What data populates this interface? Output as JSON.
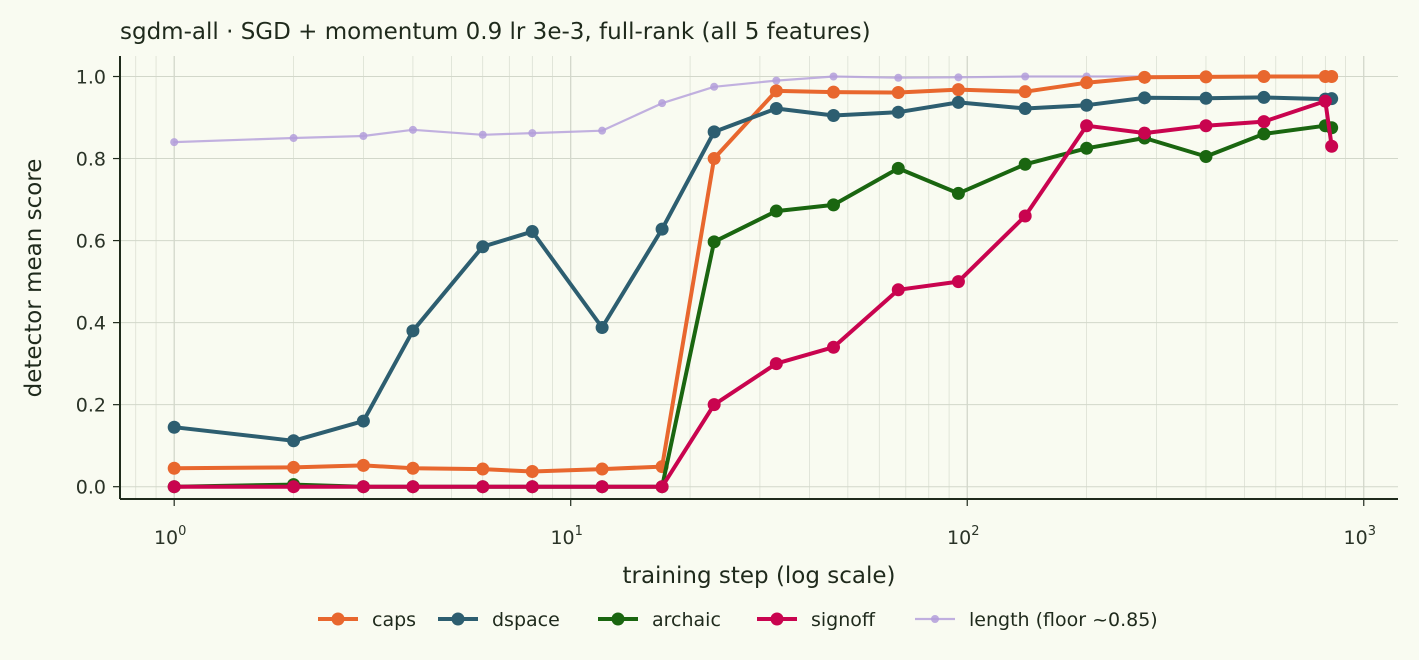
{
  "chart_data": {
    "type": "line",
    "title": "sgdm-all · SGD + momentum 0.9 lr 3e-3, full-rank (all 5 features)",
    "xlabel": "training step (log scale)",
    "ylabel": "detector mean score",
    "xscale": "log",
    "xlim": [
      0.73,
      1220
    ],
    "ylim": [
      -0.03,
      1.05
    ],
    "x_ticks": [
      {
        "value": 1,
        "base": "10",
        "exp": "0"
      },
      {
        "value": 10,
        "base": "10",
        "exp": "1"
      },
      {
        "value": 100,
        "base": "10",
        "exp": "2"
      },
      {
        "value": 1000,
        "base": "10",
        "exp": "3"
      }
    ],
    "y_ticks": [
      {
        "value": 0.0,
        "label": "0.0"
      },
      {
        "value": 0.2,
        "label": "0.2"
      },
      {
        "value": 0.4,
        "label": "0.4"
      },
      {
        "value": 0.6,
        "label": "0.6"
      },
      {
        "value": 0.8,
        "label": "0.8"
      },
      {
        "value": 1.0,
        "label": "1.0"
      }
    ],
    "grid": true,
    "legend_position": "bottom",
    "series": [
      {
        "name": "length (floor ~0.85)",
        "color": "#b39ddb",
        "style": "thin",
        "x": [
          1,
          2,
          3,
          4,
          6,
          8,
          12,
          17,
          23,
          33,
          46,
          67,
          95,
          140,
          200,
          280,
          400,
          560,
          800,
          830
        ],
        "y": [
          0.84,
          0.85,
          0.855,
          0.87,
          0.858,
          0.862,
          0.868,
          0.935,
          0.975,
          0.99,
          1.0,
          0.997,
          0.998,
          1.0,
          1.0,
          1.0,
          1.0,
          1.0,
          1.0,
          1.0
        ]
      },
      {
        "name": "caps",
        "color": "#e8672e",
        "style": "thick",
        "x": [
          1,
          2,
          3,
          4,
          6,
          8,
          12,
          17,
          23,
          33,
          46,
          67,
          95,
          140,
          200,
          280,
          400,
          560,
          800,
          830
        ],
        "y": [
          0.045,
          0.047,
          0.052,
          0.045,
          0.043,
          0.037,
          0.043,
          0.049,
          0.8,
          0.965,
          0.962,
          0.961,
          0.968,
          0.963,
          0.985,
          0.998,
          0.999,
          1.0,
          1.0,
          1.0
        ]
      },
      {
        "name": "dspace",
        "color": "#2d5e70",
        "style": "thick",
        "x": [
          1,
          2,
          3,
          4,
          6,
          8,
          12,
          17,
          23,
          33,
          46,
          67,
          95,
          140,
          200,
          280,
          400,
          560,
          800,
          830
        ],
        "y": [
          0.145,
          0.112,
          0.16,
          0.38,
          0.585,
          0.622,
          0.388,
          0.628,
          0.865,
          0.922,
          0.905,
          0.913,
          0.937,
          0.922,
          0.93,
          0.948,
          0.947,
          0.949,
          0.945,
          0.946
        ]
      },
      {
        "name": "archaic",
        "color": "#1a6610",
        "style": "thick",
        "x": [
          1,
          2,
          3,
          4,
          6,
          8,
          12,
          17,
          23,
          33,
          46,
          67,
          95,
          140,
          200,
          280,
          400,
          560,
          800,
          830
        ],
        "y": [
          0.0,
          0.005,
          0.0,
          0.0,
          0.0,
          0.0,
          0.0,
          0.0,
          0.597,
          0.672,
          0.687,
          0.776,
          0.715,
          0.786,
          0.825,
          0.85,
          0.805,
          0.86,
          0.88,
          0.875
        ]
      },
      {
        "name": "signoff",
        "color": "#c9044f",
        "style": "thick",
        "x": [
          1,
          2,
          3,
          4,
          6,
          8,
          12,
          17,
          23,
          33,
          46,
          67,
          95,
          140,
          200,
          280,
          400,
          560,
          800,
          830
        ],
        "y": [
          0.0,
          0.0,
          0.0,
          0.0,
          0.0,
          0.0,
          0.0,
          0.0,
          0.2,
          0.3,
          0.34,
          0.48,
          0.5,
          0.66,
          0.88,
          0.862,
          0.88,
          0.89,
          0.94,
          0.83
        ]
      }
    ],
    "legend_order": [
      "caps",
      "dspace",
      "archaic",
      "signoff",
      "length (floor ~0.85)"
    ]
  }
}
